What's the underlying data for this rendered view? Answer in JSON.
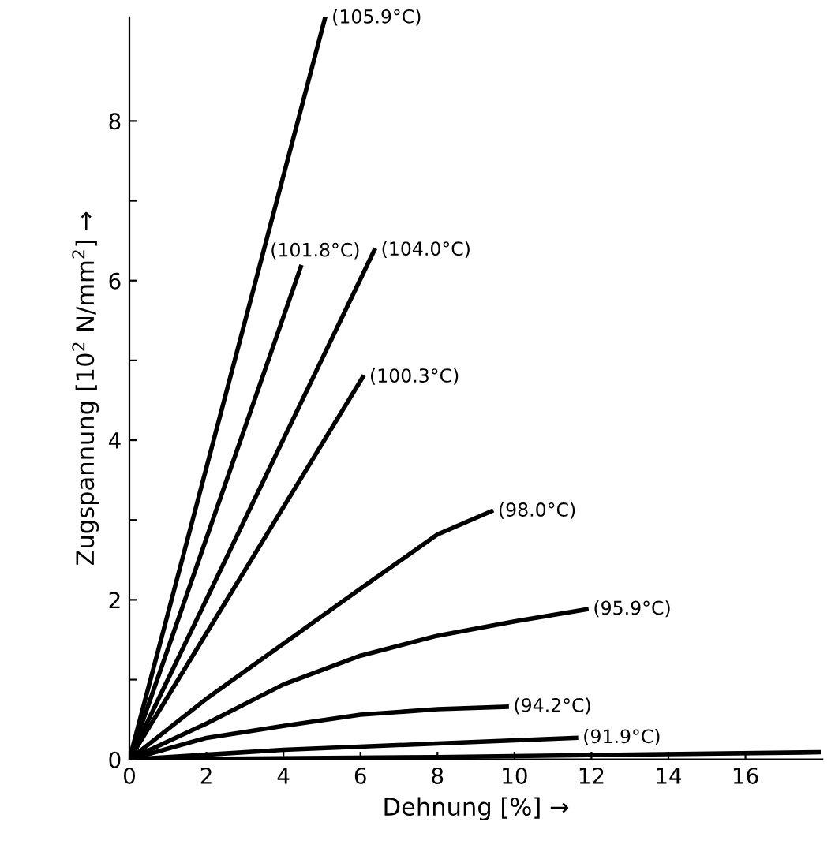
{
  "chart_data": {
    "type": "line",
    "xlabel": "Dehnung [%] →",
    "ylabel": "Zugspannung [10$^{2}$ N/mm$^{2}$] →",
    "xlim": [
      0,
      18
    ],
    "ylim": [
      0,
      9.3
    ],
    "xticks": [
      0,
      2,
      4,
      6,
      8,
      10,
      12,
      14,
      16
    ],
    "yticks": [
      0,
      {
        "value": 1,
        "label": null
      },
      2,
      {
        "value": 3,
        "label": null
      },
      4,
      {
        "value": 5,
        "label": null
      },
      6,
      {
        "value": 7,
        "label": null
      },
      8
    ],
    "grid": false,
    "legend": false,
    "marker": "none",
    "line_style": "solid",
    "series": [
      {
        "name": "(105.9°C)",
        "color": "#000000",
        "x": [
          0,
          5.08
        ],
        "values": [
          0,
          9.29
        ]
      },
      {
        "name": "(101.8°C)",
        "color": "#000000",
        "x": [
          0,
          4.45
        ],
        "values": [
          0,
          6.17
        ]
      },
      {
        "name": "(104.0°C)",
        "color": "#000000",
        "x": [
          0,
          6.36
        ],
        "values": [
          0,
          6.38
        ]
      },
      {
        "name": "(100.3°C)",
        "color": "#000000",
        "x": [
          0,
          6.06
        ],
        "values": [
          0,
          4.79
        ]
      },
      {
        "name": "(98.0°C)",
        "color": "#000000",
        "x": [
          0,
          2,
          4,
          6,
          8,
          9.4
        ],
        "values": [
          0,
          0.76,
          1.45,
          2.14,
          2.82,
          3.11
        ]
      },
      {
        "name": "(95.9°C)",
        "color": "#000000",
        "x": [
          0,
          2,
          4,
          6,
          8,
          10,
          11.87
        ],
        "values": [
          0,
          0.45,
          0.94,
          1.3,
          1.55,
          1.73,
          1.88
        ]
      },
      {
        "name": "(94.2°C)",
        "color": "#000000",
        "x": [
          0,
          2,
          4,
          6,
          8,
          9.8
        ],
        "values": [
          0,
          0.27,
          0.42,
          0.56,
          0.63,
          0.66
        ]
      },
      {
        "name": "(91.9°C)",
        "color": "#000000",
        "x": [
          0,
          4,
          8,
          11.6
        ],
        "values": [
          0,
          0.12,
          0.2,
          0.27
        ]
      },
      {
        "color": "#000000",
        "x": [
          0,
          8,
          17.9
        ],
        "values": [
          0,
          0.03,
          0.09
        ]
      }
    ]
  }
}
